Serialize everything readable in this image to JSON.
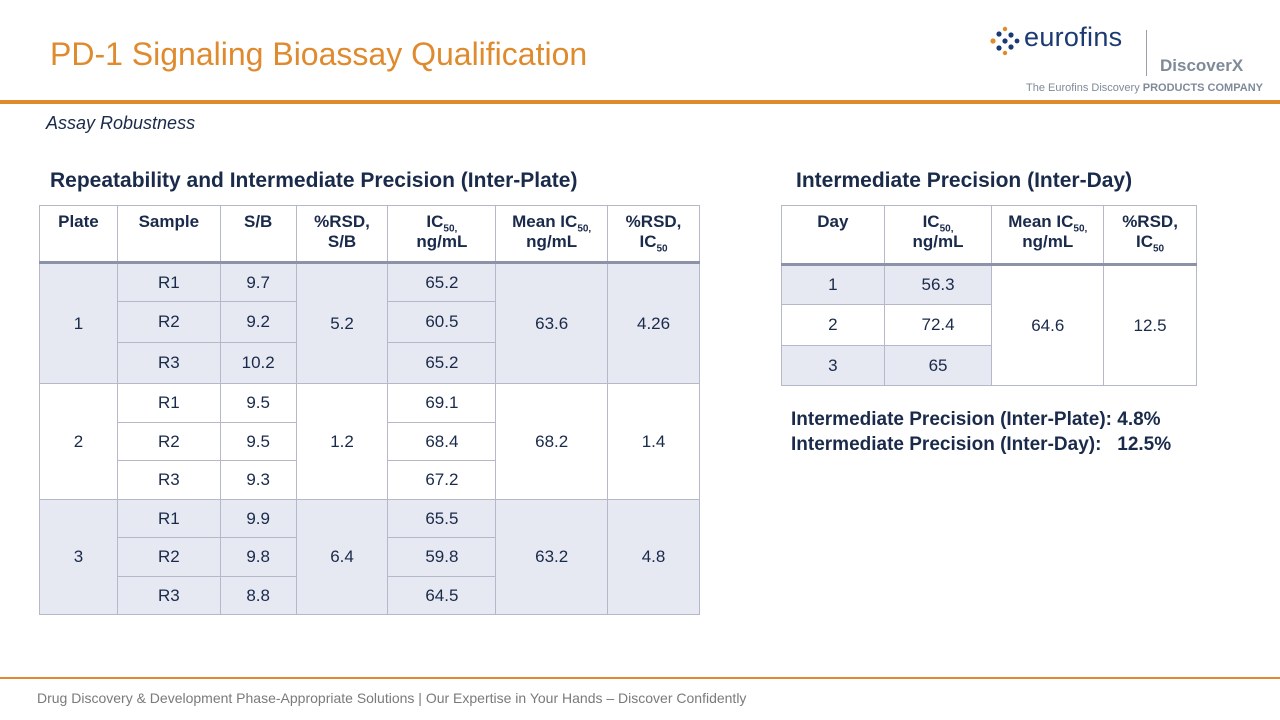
{
  "title": "PD-1 Signaling Bioassay Qualification",
  "subtitle": "Assay Robustness",
  "logo": {
    "word": "eurofins",
    "sub": "DiscoverX",
    "tag_plain": "The Eurofins Discovery",
    "tag_bold": "PRODUCTS COMPANY"
  },
  "left_section": {
    "title": "Repeatability and Intermediate Precision (Inter-Plate)",
    "headers": {
      "plate": "Plate",
      "sample": "Sample",
      "sb": "S/B",
      "rsd_sb_1": "%RSD,",
      "rsd_sb_2": "S/B",
      "ic50_1": "IC",
      "ic50_sub": "50,",
      "ic50_2": "ng/mL",
      "mean_1": "Mean IC",
      "mean_sub": "50,",
      "mean_2": "ng/mL",
      "rsd_ic_1": "%RSD,",
      "rsd_ic_2": "IC",
      "rsd_ic_sub": "50"
    },
    "plates": [
      {
        "plate": "1",
        "rsd_sb": "5.2",
        "mean_ic50": "63.6",
        "rsd_ic50": "4.26",
        "rows": [
          {
            "sample": "R1",
            "sb": "9.7",
            "ic50": "65.2"
          },
          {
            "sample": "R2",
            "sb": "9.2",
            "ic50": "60.5"
          },
          {
            "sample": "R3",
            "sb": "10.2",
            "ic50": "65.2"
          }
        ]
      },
      {
        "plate": "2",
        "rsd_sb": "1.2",
        "mean_ic50": "68.2",
        "rsd_ic50": "1.4",
        "rows": [
          {
            "sample": "R1",
            "sb": "9.5",
            "ic50": "69.1"
          },
          {
            "sample": "R2",
            "sb": "9.5",
            "ic50": "68.4"
          },
          {
            "sample": "R3",
            "sb": "9.3",
            "ic50": "67.2"
          }
        ]
      },
      {
        "plate": "3",
        "rsd_sb": "6.4",
        "mean_ic50": "63.2",
        "rsd_ic50": "4.8",
        "rows": [
          {
            "sample": "R1",
            "sb": "9.9",
            "ic50": "65.5"
          },
          {
            "sample": "R2",
            "sb": "9.8",
            "ic50": "59.8"
          },
          {
            "sample": "R3",
            "sb": "8.8",
            "ic50": "64.5"
          }
        ]
      }
    ]
  },
  "right_section": {
    "title": "Intermediate Precision (Inter-Day)",
    "headers": {
      "day": "Day",
      "ic50_1": "IC",
      "ic50_sub": "50,",
      "ic50_2": "ng/mL",
      "mean_1": "Mean IC",
      "mean_sub": "50,",
      "mean_2": "ng/mL",
      "rsd_1": "%RSD,",
      "rsd_2": "IC",
      "rsd_sub": "50"
    },
    "rows": [
      {
        "day": "1",
        "ic50": "56.3"
      },
      {
        "day": "2",
        "ic50": "72.4"
      },
      {
        "day": "3",
        "ic50": "65"
      }
    ],
    "mean_ic50": "64.6",
    "rsd_ic50": "12.5"
  },
  "summary": {
    "plate_label": "Intermediate Precision (Inter-Plate):",
    "plate_value": "4.8%",
    "day_label": "Intermediate Precision (Inter-Day):",
    "day_value": "12.5%"
  },
  "footer": "Drug Discovery & Development Phase-Appropriate Solutions | Our Expertise in Your Hands – Discover Confidently",
  "colors": {
    "accent": "#e08a2e",
    "navy": "#1a2a4a",
    "shade": "#e6e8f2"
  }
}
